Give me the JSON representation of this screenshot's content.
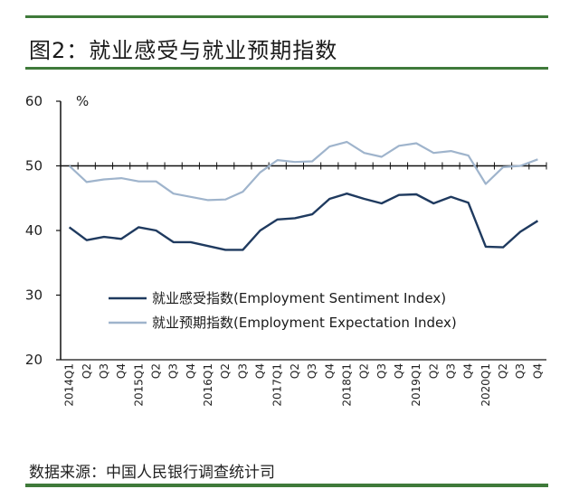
{
  "header": {
    "title": "图2：就业感受与就业预期指数"
  },
  "footer": {
    "source": "数据来源：中国人民银行调查统计司"
  },
  "chart_data": {
    "type": "line",
    "title": "图2：就业感受与就业预期指数",
    "ylabel": "%",
    "ylim": [
      20,
      60
    ],
    "yticks": [
      "20",
      "30",
      "40",
      "50",
      "60"
    ],
    "reference_line": 50,
    "categories": [
      "2014Q1",
      "Q2",
      "Q3",
      "Q4",
      "2015Q1",
      "Q2",
      "Q3",
      "Q4",
      "2016Q1",
      "Q2",
      "Q3",
      "Q4",
      "2017Q1",
      "Q2",
      "Q3",
      "Q4",
      "2018Q1",
      "Q2",
      "Q3",
      "Q4",
      "2019Q1",
      "Q2",
      "Q3",
      "Q4",
      "2020Q1",
      "Q2",
      "Q3",
      "Q4"
    ],
    "legend_position": "lower-left",
    "series": [
      {
        "name": "就业感受指数(Employment Sentiment Index)",
        "color": "#1f3a5f",
        "values": [
          40.5,
          38.5,
          39.0,
          38.7,
          40.5,
          40.0,
          38.2,
          38.2,
          37.6,
          37.0,
          37.0,
          40.0,
          41.7,
          41.9,
          42.5,
          44.9,
          45.7,
          44.9,
          44.2,
          45.5,
          45.6,
          44.2,
          45.2,
          44.3,
          37.5,
          37.4,
          39.8,
          41.5
        ]
      },
      {
        "name": "就业预期指数(Employment Expectation Index)",
        "color": "#9fb4cc",
        "values": [
          50.0,
          47.5,
          47.9,
          48.1,
          47.6,
          47.6,
          45.7,
          45.2,
          44.7,
          44.8,
          46.0,
          49.0,
          50.9,
          50.6,
          50.7,
          53.0,
          53.7,
          52.0,
          51.4,
          53.1,
          53.5,
          52.0,
          52.3,
          51.6,
          47.2,
          49.8,
          50.0,
          51.0
        ]
      }
    ]
  }
}
